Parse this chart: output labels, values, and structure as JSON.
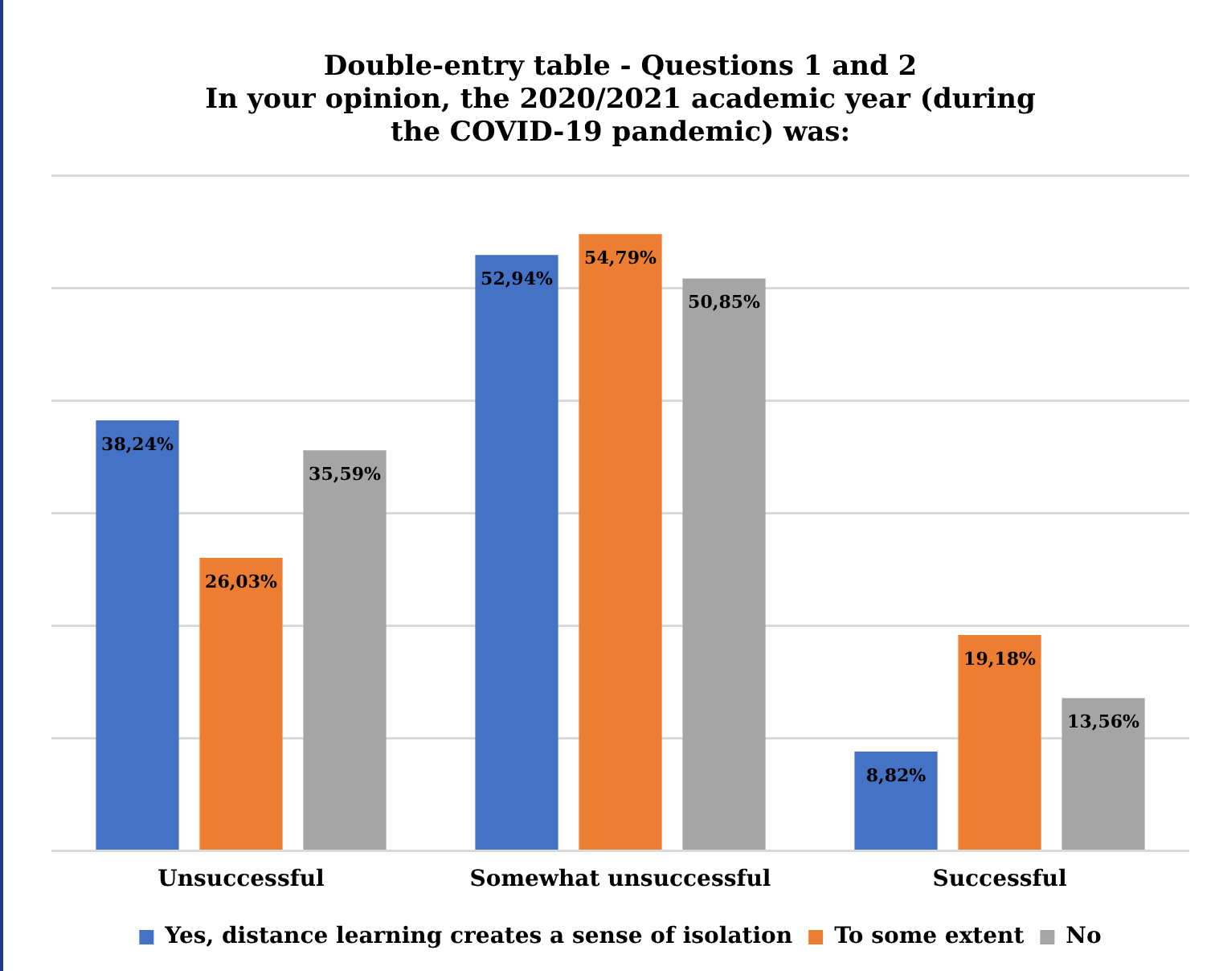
{
  "chart_data": {
    "type": "bar",
    "title": [
      "Double-entry table - Questions 1 and 2",
      "In your opinion, the 2020/2021 academic year (during",
      "the COVID-19 pandemic) was:"
    ],
    "categories": [
      "Unsuccessful",
      "Somewhat unsuccessful",
      "Successful"
    ],
    "series": [
      {
        "name": "Yes, distance learning creates a sense of isolation",
        "color": "#4472c4",
        "values": [
          38.24,
          52.94,
          8.82
        ],
        "value_labels": [
          "38,24%",
          "52,94%",
          "8,82%"
        ]
      },
      {
        "name": "To some extent",
        "color": "#ed7d31",
        "values": [
          26.03,
          54.79,
          19.18
        ],
        "value_labels": [
          "26,03%",
          "54,79%",
          "19,18%"
        ]
      },
      {
        "name": "No",
        "color": "#a5a5a5",
        "values": [
          35.59,
          50.85,
          13.56
        ],
        "value_labels": [
          "35,59%",
          "50,85%",
          "13,56%"
        ]
      }
    ],
    "ylim": [
      0,
      60
    ],
    "yticks": [
      {
        "value": 0,
        "label": null
      },
      {
        "value": 10,
        "label": null
      },
      {
        "value": 20,
        "label": null
      },
      {
        "value": 30,
        "label": null
      },
      {
        "value": 40,
        "label": null
      },
      {
        "value": 50,
        "label": null
      },
      {
        "value": 60,
        "label": null
      }
    ],
    "grid": "y",
    "legend": "bottom",
    "tick_labels": "x"
  }
}
